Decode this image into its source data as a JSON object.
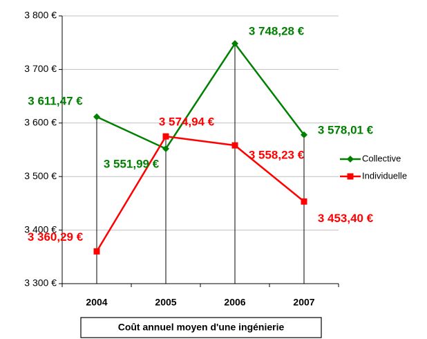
{
  "chart_data": {
    "type": "line",
    "title": "Coût annuel moyen d'une ingénierie",
    "categories": [
      "2004",
      "2005",
      "2006",
      "2007"
    ],
    "series": [
      {
        "name": "Collective",
        "color": "#008000",
        "marker": "diamond",
        "values": [
          3611.47,
          3551.99,
          3748.28,
          3578.01
        ],
        "value_labels": [
          "3 611,47 €",
          "3 551,99 €",
          "3 748,28 €",
          "3 578,01 €"
        ]
      },
      {
        "name": "Individuelle",
        "color": "#ff0000",
        "marker": "square",
        "values": [
          3360.29,
          3574.94,
          3558.23,
          3453.4
        ],
        "value_labels": [
          "3 360,29 €",
          "3 574,94 €",
          "3 558,23 €",
          "3 453,40 €"
        ]
      }
    ],
    "ylim": [
      3300,
      3800
    ],
    "yticks": [
      {
        "value": 3300,
        "label": "3 300 €"
      },
      {
        "value": 3400,
        "label": "3 400 €"
      },
      {
        "value": 3500,
        "label": "3 500 €"
      },
      {
        "value": 3600,
        "label": "3 600 €"
      },
      {
        "value": 3700,
        "label": "3 700 €"
      },
      {
        "value": 3800,
        "label": "3 800 €"
      }
    ],
    "grid": true,
    "legend": "right"
  }
}
